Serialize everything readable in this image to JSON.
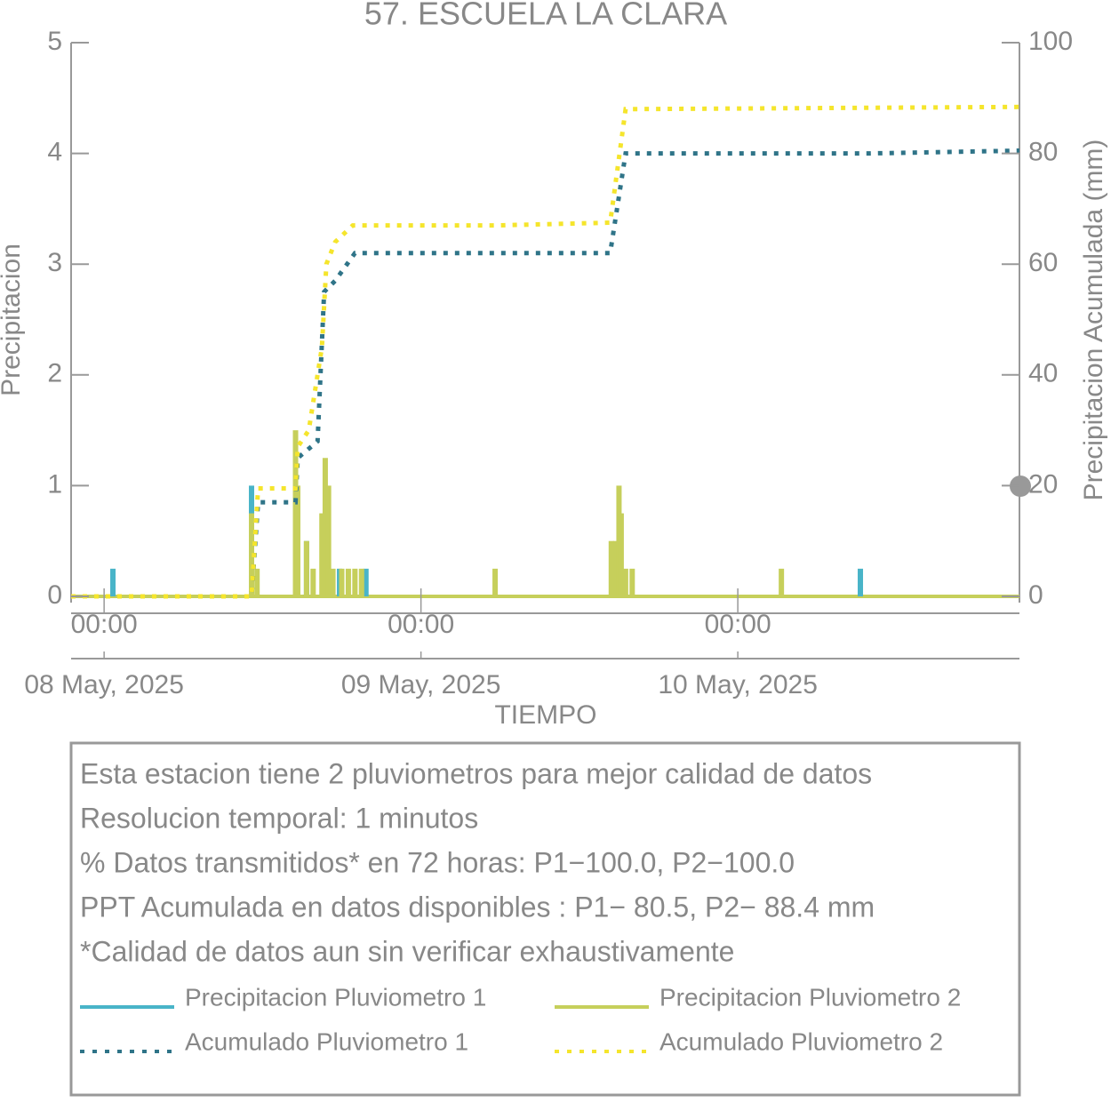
{
  "chart_data": {
    "type": "line",
    "title": "57. ESCUELA LA CLARA",
    "xlabel": "TIEMPO",
    "ylabel": "Precipitacion",
    "y2label": "Precipitacion Acumulada (mm)",
    "xlim": [
      "2025-05-07T21:30",
      "2025-05-10T21:20"
    ],
    "xticks": [
      {
        "value": "2025-05-08T00:00",
        "label": "00:00"
      },
      {
        "value": "2025-05-09T00:00",
        "label": "00:00"
      },
      {
        "value": "2025-05-10T00:00",
        "label": "00:00"
      }
    ],
    "xtick_dates": [
      "08 May, 2025",
      "09 May, 2025",
      "10 May, 2025"
    ],
    "ylim": [
      0,
      5
    ],
    "yticks": [
      0,
      1,
      2,
      3,
      4,
      5
    ],
    "y2lim": [
      0,
      100
    ],
    "y2ticks": [
      0,
      20,
      40,
      60,
      80,
      100
    ],
    "series": [
      {
        "name": "Precipitacion Pluviometro 1",
        "color": "#49b4c8",
        "mark": "bar",
        "x": [
          "2025-05-08T00:40",
          "2025-05-08T11:10",
          "2025-05-08T15:20",
          "2025-05-08T17:50",
          "2025-05-08T19:50",
          "2025-05-10T09:17"
        ],
        "values": [
          0.25,
          1,
          0.5,
          0.25,
          0.25,
          0.25
        ]
      },
      {
        "name": "Precipitacion Pluviometro 2",
        "color": "#c6cf5b",
        "mark": "bar",
        "x": [
          "2025-05-08T11:10",
          "2025-05-08T11:35",
          "2025-05-08T14:30",
          "2025-05-08T14:40",
          "2025-05-08T15:20",
          "2025-05-08T15:50",
          "2025-05-08T16:30",
          "2025-05-08T16:45",
          "2025-05-08T17:00",
          "2025-05-08T17:20",
          "2025-05-08T18:00",
          "2025-05-08T18:30",
          "2025-05-08T19:00",
          "2025-05-08T19:30",
          "2025-05-09T05:37",
          "2025-05-09T14:25",
          "2025-05-09T14:45",
          "2025-05-09T15:00",
          "2025-05-09T15:10",
          "2025-05-09T15:30",
          "2025-05-09T16:00",
          "2025-05-10T03:18"
        ],
        "values": [
          0.75,
          0.25,
          1.5,
          1.0,
          0.5,
          0.25,
          0.75,
          1.25,
          1.0,
          0.25,
          0.25,
          0.25,
          0.25,
          0.25,
          0.25,
          0.5,
          0.5,
          1.0,
          0.75,
          0.25,
          0.25,
          0.25
        ]
      },
      {
        "name": "Acumulado Pluviometro 1",
        "color": "#2f7488",
        "mark": "dotted",
        "axis": "y2",
        "x": [
          "2025-05-07T21:30",
          "2025-05-08T11:10",
          "2025-05-08T11:40",
          "2025-05-08T14:30",
          "2025-05-08T14:40",
          "2025-05-08T16:10",
          "2025-05-08T16:40",
          "2025-05-08T17:30",
          "2025-05-08T19:00",
          "2025-05-09T14:20",
          "2025-05-09T15:30",
          "2025-05-10T10:00",
          "2025-05-10T21:20"
        ],
        "values": [
          0,
          0,
          17,
          17,
          25,
          28,
          55,
          57,
          62,
          62,
          80,
          80,
          80.5
        ]
      },
      {
        "name": "Acumulado Pluviometro 2",
        "color": "#f5e52c",
        "mark": "dotted",
        "axis": "y2",
        "x": [
          "2025-05-07T21:30",
          "2025-05-08T11:10",
          "2025-05-08T11:40",
          "2025-05-08T14:30",
          "2025-05-08T14:40",
          "2025-05-08T15:30",
          "2025-05-08T16:30",
          "2025-05-08T16:50",
          "2025-05-08T17:30",
          "2025-05-08T18:50",
          "2025-05-09T05:40",
          "2025-05-09T14:20",
          "2025-05-09T15:30",
          "2025-05-10T21:20"
        ],
        "values": [
          0,
          0,
          19.5,
          19.5,
          27,
          30,
          45,
          60,
          64,
          67,
          67,
          67.5,
          88,
          88.4
        ]
      }
    ]
  },
  "notes": [
    "Esta estacion tiene 2 pluviometros para mejor calidad de datos",
    "Resolucion temporal: 1 minutos",
    "% Datos transmitidos* en 72 horas: P1−100.0, P2−100.0",
    "PPT Acumulada en datos disponibles : P1− 80.5, P2− 88.4 mm",
    "*Calidad de datos aun sin verificar exhaustivamente"
  ]
}
